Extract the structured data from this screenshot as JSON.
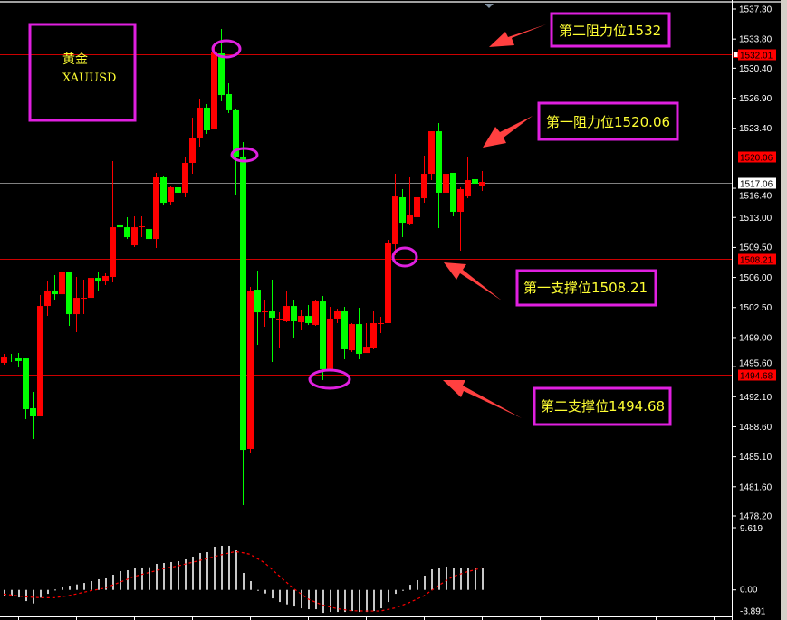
{
  "colors": {
    "background": "#000000",
    "bull_candle": "#ff0000",
    "bear_candle": "#00ff00",
    "level_line": "#cc0000",
    "current_price_line": "#808080",
    "annotation_box": "#e020e0",
    "annotation_text": "#ffff33",
    "arrow": "#ff4040",
    "histogram": "#c8c8c8",
    "signal_line": "#ff0000"
  },
  "title_box": {
    "name": "黄金",
    "symbol": "XAUUSD"
  },
  "annotations": [
    {
      "label": "第二阻力位1532",
      "icon": "arrow-icon"
    },
    {
      "label": "第一阻力位1520.06",
      "icon": "arrow-icon"
    },
    {
      "label": "第一支撑位1508.21",
      "icon": "arrow-icon"
    },
    {
      "label": "第二支撑位1494.68",
      "icon": "arrow-icon"
    }
  ],
  "chart_data": [
    {
      "type": "candlestick",
      "title": "",
      "y_axis": {
        "range": [
          1478.2,
          1537.3
        ],
        "ticks": [
          "1537.30",
          "1533.80",
          "1530.40",
          "1526.90",
          "1523.40",
          "1516.40",
          "1513.00",
          "1509.50",
          "1506.00",
          "1502.50",
          "1499.00",
          "1495.60",
          "1492.10",
          "1488.60",
          "1485.10",
          "1481.60",
          "1478.20"
        ]
      },
      "price_levels": [
        {
          "value": "1532.01",
          "style": "red"
        },
        {
          "value": "1520.06",
          "style": "red"
        },
        {
          "value": "1508.21",
          "style": "red"
        },
        {
          "value": "1494.68",
          "style": "red"
        }
      ],
      "current_price": "1517.06",
      "candles_ohlc": [
        [
          1496.04,
          1497.09,
          1495.82,
          1496.77
        ],
        [
          1496.67,
          1497.09,
          1496.14,
          1496.56
        ],
        [
          1496.56,
          1497.2,
          1495.61,
          1496.25
        ],
        [
          1496.56,
          1496.56,
          1489.49,
          1490.65
        ],
        [
          1490.76,
          1492.66,
          1487.17,
          1489.81
        ],
        [
          1489.81,
          1503.95,
          1489.81,
          1502.68
        ],
        [
          1502.68,
          1505.53,
          1501.52,
          1504.48
        ],
        [
          1504.48,
          1506.27,
          1503.32,
          1504.05
        ],
        [
          1504.05,
          1508.38,
          1503.42,
          1506.59
        ],
        [
          1506.69,
          1506.69,
          1500.36,
          1501.73
        ],
        [
          1501.73,
          1506.06,
          1499.62,
          1503.63
        ],
        [
          1503.63,
          1505.74,
          1501.73,
          1503.63
        ],
        [
          1503.63,
          1506.59,
          1503.32,
          1505.95
        ],
        [
          1505.95,
          1506.59,
          1504.37,
          1505.53
        ],
        [
          1505.53,
          1506.48,
          1505.11,
          1506.17
        ],
        [
          1506.06,
          1519.57,
          1505.43,
          1511.86
        ],
        [
          1512.08,
          1513.98,
          1507.33,
          1511.86
        ],
        [
          1511.86,
          1513.03,
          1510.49,
          1510.7
        ],
        [
          1509.75,
          1513.13,
          1509.54,
          1511.86
        ],
        [
          1511.97,
          1513.13,
          1510.7,
          1511.97
        ],
        [
          1511.65,
          1512.39,
          1510.07,
          1510.49
        ],
        [
          1510.49,
          1518.2,
          1509.44,
          1517.67
        ],
        [
          1517.67,
          1517.88,
          1514.4,
          1514.71
        ],
        [
          1514.82,
          1516.61,
          1514.4,
          1516.51
        ],
        [
          1516.51,
          1516.51,
          1515.35,
          1515.88
        ],
        [
          1515.88,
          1519.99,
          1515.35,
          1519.36
        ],
        [
          1519.36,
          1524.64,
          1518.09,
          1522.31
        ],
        [
          1522.21,
          1526.85,
          1521.26,
          1525.8
        ],
        [
          1525.8,
          1526.22,
          1522.74,
          1523.16
        ],
        [
          1523.26,
          1532.97,
          1523.26,
          1532.23
        ],
        [
          1532.13,
          1534.98,
          1526.54,
          1527.27
        ],
        [
          1527.38,
          1528.65,
          1525.16,
          1525.59
        ],
        [
          1525.59,
          1525.69,
          1515.66,
          1520.1
        ],
        [
          1520.1,
          1521.79,
          1479.46,
          1485.9
        ],
        [
          1486.01,
          1504.9,
          1485.48,
          1504.48
        ],
        [
          1504.58,
          1506.8,
          1498.14,
          1501.94
        ],
        [
          1502.05,
          1503.42,
          1500.26,
          1502.05
        ],
        [
          1502.05,
          1505.74,
          1496.14,
          1501.31
        ],
        [
          1501.21,
          1501.94,
          1497.72,
          1501.21
        ],
        [
          1500.89,
          1504.37,
          1500.78,
          1502.68
        ],
        [
          1502.68,
          1503.42,
          1498.99,
          1500.89
        ],
        [
          1500.78,
          1502.26,
          1499.83,
          1501.52
        ],
        [
          1501.52,
          1502.79,
          1500.47,
          1500.68
        ],
        [
          1500.47,
          1503.32,
          1500.36,
          1503.21
        ],
        [
          1503.21,
          1503.84,
          1494.03,
          1495.3
        ],
        [
          1495.3,
          1502.58,
          1495.19,
          1501.21
        ],
        [
          1501.21,
          1502.37,
          1500.68,
          1502.05
        ],
        [
          1502.05,
          1502.58,
          1496.46,
          1497.62
        ],
        [
          1497.51,
          1500.68,
          1497.3,
          1500.57
        ],
        [
          1500.57,
          1502.47,
          1496.46,
          1497.09
        ],
        [
          1497.19,
          1500.68,
          1497.19,
          1497.93
        ],
        [
          1497.83,
          1502.05,
          1497.62,
          1500.68
        ],
        [
          1500.68,
          1501.42,
          1499.52,
          1500.68
        ],
        [
          1500.68,
          1510.39,
          1500.68,
          1510.07
        ],
        [
          1509.86,
          1518.09,
          1508.59,
          1515.45
        ],
        [
          1515.35,
          1516.3,
          1510.7,
          1512.39
        ],
        [
          1512.29,
          1517.67,
          1512.08,
          1513.24
        ],
        [
          1513.03,
          1515.45,
          1505.74,
          1515.35
        ],
        [
          1515.24,
          1520.2,
          1514.71,
          1518.09
        ],
        [
          1518.09,
          1523.05,
          1517.35,
          1523.05
        ],
        [
          1523.05,
          1524.0,
          1511.76,
          1515.88
        ],
        [
          1515.88,
          1520.94,
          1515.24,
          1518.09
        ],
        [
          1518.2,
          1518.2,
          1513.13,
          1513.66
        ],
        [
          1513.66,
          1516.51,
          1509.12,
          1516.3
        ],
        [
          1515.45,
          1520.1,
          1515.24,
          1517.35
        ],
        [
          1517.46,
          1518.51,
          1514.71,
          1516.93
        ],
        [
          1516.72,
          1518.41,
          1516.09,
          1517.14
        ]
      ]
    },
    {
      "type": "bar",
      "title": "",
      "y_axis": {
        "range": [
          -3.891,
          9.619
        ],
        "ticks": [
          "9.619",
          "0.00",
          "-3.891"
        ]
      },
      "histogram": [
        -0.93,
        -0.93,
        -1.17,
        -1.73,
        -2.1,
        -1.21,
        -0.61,
        0.05,
        0.51,
        0.65,
        0.84,
        1.07,
        1.36,
        1.64,
        1.78,
        2.34,
        2.9,
        3.04,
        3.32,
        3.46,
        3.5,
        4.02,
        4.16,
        4.3,
        4.44,
        4.72,
        5.14,
        5.7,
        5.84,
        6.68,
        6.82,
        6.82,
        6.12,
        2.62,
        1.36,
        -0.14,
        -0.56,
        -1.31,
        -1.87,
        -2.24,
        -2.57,
        -2.85,
        -2.99,
        -2.99,
        -3.55,
        -3.41,
        -3.41,
        -3.41,
        -3.27,
        -3.41,
        -3.41,
        -3.27,
        -2.85,
        -1.87,
        -0.61,
        -0.05,
        0.79,
        1.5,
        2.2,
        3.18,
        3.32,
        3.6,
        3.32,
        3.32,
        3.46,
        3.46,
        3.32
      ],
      "signal_line": [
        -0.65,
        -0.79,
        -0.93,
        -1.07,
        -1.14,
        -1.21,
        -1.21,
        -1.21,
        -1.05,
        -0.89,
        -0.64,
        -0.39,
        -0.14,
        0.07,
        0.28,
        0.72,
        1.17,
        1.61,
        2.06,
        2.36,
        2.66,
        2.96,
        3.27,
        3.48,
        3.69,
        3.97,
        4.25,
        4.53,
        4.81,
        5.11,
        5.42,
        5.67,
        5.93,
        5.75,
        5.51,
        4.86,
        4.21,
        3.2,
        2.2,
        1.21,
        0.23,
        -0.58,
        -1.4,
        -1.87,
        -2.34,
        -2.62,
        -2.9,
        -3.06,
        -3.22,
        -3.25,
        -3.27,
        -3.27,
        -3.27,
        -3.03,
        -2.8,
        -2.38,
        -1.96,
        -1.45,
        -0.93,
        -0.14,
        0.65,
        1.35,
        2.06,
        2.43,
        2.8,
        3.1,
        3.41
      ]
    }
  ]
}
